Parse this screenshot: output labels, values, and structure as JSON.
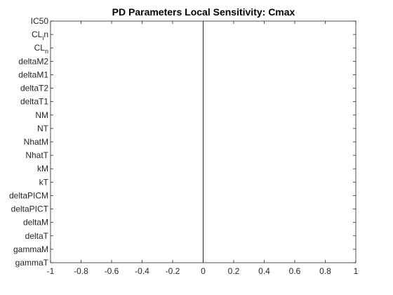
{
  "chart_data": {
    "type": "bar",
    "orientation": "horizontal",
    "title": "PD Parameters Local Sensitivity: Cmax",
    "xlabel": "",
    "ylabel": "",
    "xlim": [
      -1,
      1
    ],
    "x_ticks": [
      -1,
      -0.8,
      -0.6,
      -0.4,
      -0.2,
      0,
      0.2,
      0.4,
      0.6,
      0.8,
      1
    ],
    "x_tick_labels": [
      "-1",
      "-0.8",
      "-0.6",
      "-0.4",
      "-0.2",
      "0",
      "0.2",
      "0.4",
      "0.6",
      "0.8",
      "1"
    ],
    "categories": [
      {
        "label": "IC50"
      },
      {
        "label": "CL",
        "sub": "i",
        "suffix": "n"
      },
      {
        "label": "CL",
        "sub": "n"
      },
      {
        "label": "deltaM2"
      },
      {
        "label": "deltaM1"
      },
      {
        "label": "deltaT2"
      },
      {
        "label": "deltaT1"
      },
      {
        "label": "NM"
      },
      {
        "label": "NT"
      },
      {
        "label": "NhatM"
      },
      {
        "label": "NhatT"
      },
      {
        "label": "kM"
      },
      {
        "label": "kT"
      },
      {
        "label": "deltaPICM"
      },
      {
        "label": "deltaPICT"
      },
      {
        "label": "deltaM"
      },
      {
        "label": "deltaT"
      },
      {
        "label": "gammaM"
      },
      {
        "label": "gammaT"
      }
    ],
    "values": [
      0,
      0,
      0,
      0,
      0,
      0,
      0,
      0,
      0,
      0,
      0,
      0,
      0,
      0,
      0,
      0,
      0,
      0,
      0
    ],
    "zero_line": true,
    "grid": false,
    "colors": {
      "axis": "#262626",
      "bar": "#0072BD",
      "zero_line": "#262626"
    }
  }
}
